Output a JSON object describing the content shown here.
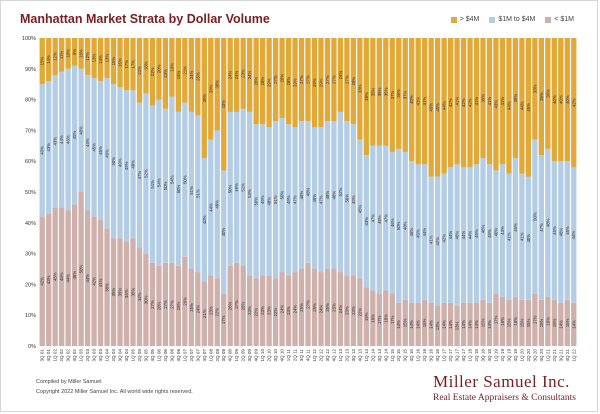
{
  "colors": {
    "over4m": "#e3a938",
    "mid": "#b4cde6",
    "under1m": "#cfb0ab",
    "brand": "#7b1e22"
  },
  "footer": {
    "compiled": "Compiled by Miller Samuel",
    "copyright": "Copyright 2022 Miller Samuel Inc. All world wide rights reserved."
  },
  "brand": {
    "name": "Miller Samuel Inc.",
    "tagline": "Real Estate Appraisers & Consultants"
  },
  "chart_data": {
    "type": "bar",
    "stacked": true,
    "title": "Manhattan Market Strata by Dollar Volume",
    "xlabel": "",
    "ylabel": "",
    "ylim": [
      0,
      100
    ],
    "yticks": [
      "0%",
      "10%",
      "20%",
      "30%",
      "40%",
      "50%",
      "60%",
      "70%",
      "80%",
      "90%",
      "100%"
    ],
    "legend_position": "top-right",
    "categories": [
      "3Q 01",
      "4Q 01",
      "1Q 02",
      "2Q 02",
      "3Q 02",
      "4Q 02",
      "1Q 03",
      "2Q 03",
      "3Q 03",
      "4Q 03",
      "1Q 04",
      "2Q 04",
      "3Q 04",
      "4Q 04",
      "1Q 05",
      "2Q 05",
      "3Q 05",
      "4Q 05",
      "1Q 06",
      "2Q 06",
      "3Q 06",
      "4Q 06",
      "1Q 07",
      "2Q 07",
      "3Q 07",
      "4Q 07",
      "1Q 08",
      "2Q 08",
      "3Q 08",
      "4Q 08",
      "1Q 09",
      "2Q 09",
      "3Q 09",
      "4Q 09",
      "1Q 10",
      "2Q 10",
      "3Q 10",
      "4Q 10",
      "1Q 11",
      "2Q 11",
      "3Q 11",
      "4Q 11",
      "1Q 12",
      "2Q 12",
      "3Q 12",
      "4Q 12",
      "1Q 13",
      "2Q 13",
      "3Q 13",
      "4Q 13",
      "1Q 14",
      "2Q 14",
      "3Q 14",
      "4Q 14",
      "1Q 15",
      "2Q 15",
      "3Q 15",
      "4Q 15",
      "1Q 16",
      "2Q 16",
      "3Q 16",
      "4Q 16",
      "1Q 17",
      "2Q 17",
      "3Q 17",
      "4Q 17",
      "1Q 18",
      "2Q 18",
      "3Q 18",
      "4Q 18",
      "1Q 19",
      "2Q 19",
      "3Q 19",
      "4Q 19",
      "1Q 20",
      "2Q 20",
      "3Q 20",
      "4Q 20",
      "1Q 21",
      "2Q 21",
      "3Q 21",
      "4Q 21",
      "1Q 22"
    ],
    "series": [
      {
        "name": "< $1M",
        "values": [
          42,
          43,
          45,
          45,
          44,
          46,
          50,
          44,
          42,
          41,
          38,
          35,
          35,
          34,
          35,
          32,
          30,
          27,
          26,
          27,
          27,
          26,
          29,
          25,
          24,
          21,
          23,
          22,
          17,
          26,
          27,
          26,
          23,
          22,
          23,
          23,
          22,
          24,
          23,
          24,
          25,
          27,
          25,
          24,
          25,
          25,
          24,
          23,
          23,
          22,
          19,
          18,
          17,
          18,
          17,
          14,
          15,
          14,
          14,
          15,
          14,
          13,
          14,
          14,
          13,
          14,
          14,
          14,
          15,
          14,
          17,
          16,
          15,
          16,
          15,
          15,
          17,
          15,
          16,
          15,
          14,
          15,
          14
        ]
      },
      {
        "name": "$1M to $4M",
        "values": [
          43,
          43,
          43,
          44,
          46,
          45,
          40,
          44,
          45,
          45,
          49,
          50,
          49,
          49,
          48,
          47,
          52,
          51,
          54,
          50,
          54,
          50,
          50,
          51,
          51,
          40,
          44,
          48,
          40,
          50,
          49,
          51,
          53,
          50,
          49,
          48,
          51,
          50,
          49,
          47,
          48,
          46,
          46,
          47,
          48,
          48,
          52,
          50,
          49,
          45,
          43,
          47,
          48,
          47,
          46,
          50,
          48,
          46,
          45,
          44,
          41,
          42,
          42,
          44,
          46,
          44,
          44,
          45,
          46,
          45,
          40,
          43,
          41,
          45,
          41,
          40,
          50,
          47,
          48,
          45,
          46,
          45,
          44
        ]
      },
      {
        "name": "> $4M",
        "values": [
          15,
          14,
          12,
          11,
          10,
          9,
          10,
          12,
          13,
          14,
          13,
          15,
          16,
          17,
          17,
          21,
          18,
          22,
          20,
          23,
          19,
          24,
          21,
          24,
          25,
          39,
          33,
          30,
          43,
          24,
          24,
          23,
          24,
          28,
          28,
          29,
          27,
          26,
          28,
          29,
          27,
          27,
          29,
          29,
          27,
          27,
          24,
          27,
          28,
          33,
          38,
          35,
          35,
          35,
          37,
          36,
          37,
          40,
          41,
          41,
          45,
          45,
          44,
          42,
          41,
          42,
          42,
          41,
          39,
          41,
          43,
          41,
          44,
          39,
          44,
          45,
          33,
          38,
          36,
          40,
          40,
          40,
          42
        ]
      }
    ]
  }
}
